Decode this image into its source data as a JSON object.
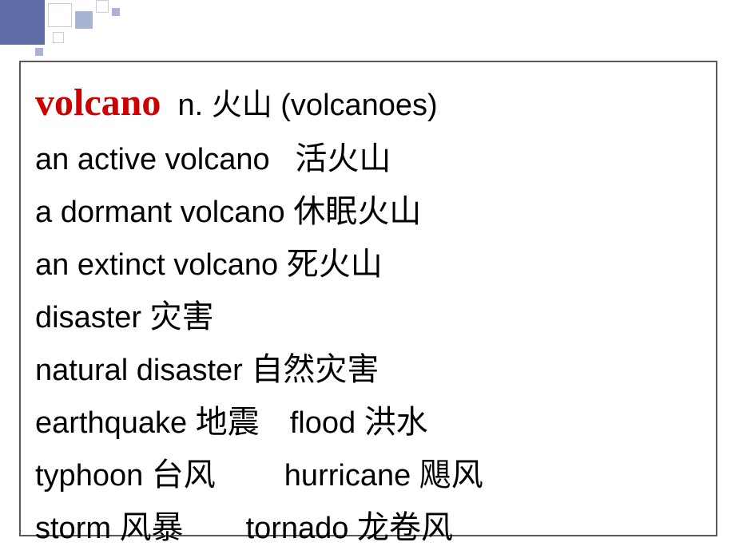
{
  "colors": {
    "headword": "#cc0000",
    "text": "#000000",
    "border": "#595959",
    "deco_dark": "#5d6ca5",
    "deco_light": "#a9b3d3",
    "deco_outline": "#c6cde2",
    "background": "#ffffff"
  },
  "fonts": {
    "latin": "Comic Sans MS",
    "cjk": "SimSun",
    "headword_size": 48,
    "body_size": 38,
    "cjk_size": 40
  },
  "headword": "volcano",
  "line1_rest": "n. 火山 (volcanoes)",
  "line2_en": "an active volcano",
  "line2_zh": "活火山",
  "line3_en": "a dormant volcano",
  "line3_zh": "休眠火山",
  "line4_en": "an extinct volcano",
  "line4_zh": "死火山",
  "line5_en": "disaster",
  "line5_zh": "灾害",
  "line6_en": "natural disaster",
  "line6_zh": "自然灾害",
  "line7a_en": "earthquake",
  "line7a_zh": "地震",
  "line7b_en": "flood",
  "line7b_zh": "洪水",
  "line8a_en": "typhoon",
  "line8a_zh": "台风",
  "line8b_en": "hurricane",
  "line8b_zh": "飓风",
  "line9a_en": "storm",
  "line9a_zh": "风暴",
  "line9b_en": "tornado",
  "line9b_zh": "龙卷风"
}
